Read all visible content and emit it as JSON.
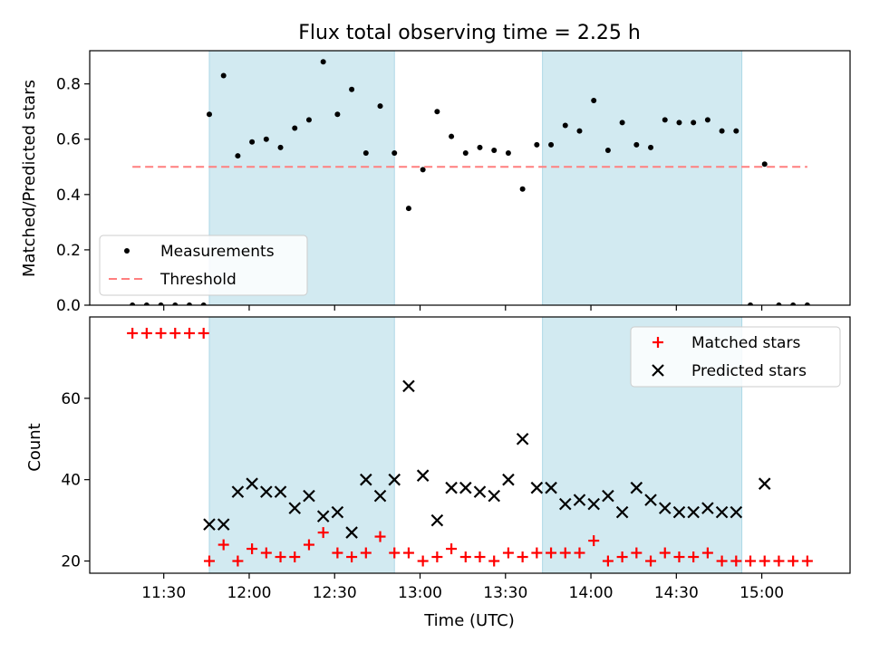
{
  "chart_data": {
    "title": "Flux total observing time = 2.25 h",
    "xlabel": "Time (UTC)",
    "x_ticks": [
      "11:30",
      "12:00",
      "12:30",
      "13:00",
      "13:30",
      "14:00",
      "14:30",
      "15:00"
    ],
    "shaded_intervals": [
      [
        "11:46",
        "12:51"
      ],
      [
        "13:43",
        "14:53"
      ]
    ],
    "shade_color": "#add8e6",
    "panels": [
      {
        "type": "scatter",
        "ylabel": "Matched/Predicted stars",
        "ylim": [
          0,
          0.92
        ],
        "y_ticks": [
          "0.0",
          "0.2",
          "0.4",
          "0.6",
          "0.8"
        ],
        "legend_position": "lower-left",
        "series": [
          {
            "name": "Measurements",
            "marker": "dot",
            "color": "#000000",
            "points": [
              [
                "11:19",
                0
              ],
              [
                "11:24",
                0
              ],
              [
                "11:29",
                0
              ],
              [
                "11:34",
                0
              ],
              [
                "11:39",
                0
              ],
              [
                "11:44",
                0
              ],
              [
                "11:46",
                0.69
              ],
              [
                "11:51",
                0.83
              ],
              [
                "11:56",
                0.54
              ],
              [
                "12:01",
                0.59
              ],
              [
                "12:06",
                0.6
              ],
              [
                "12:11",
                0.57
              ],
              [
                "12:16",
                0.64
              ],
              [
                "12:21",
                0.67
              ],
              [
                "12:26",
                0.88
              ],
              [
                "12:31",
                0.69
              ],
              [
                "12:36",
                0.78
              ],
              [
                "12:41",
                0.55
              ],
              [
                "12:46",
                0.72
              ],
              [
                "12:51",
                0.55
              ],
              [
                "12:56",
                0.35
              ],
              [
                "13:01",
                0.49
              ],
              [
                "13:06",
                0.7
              ],
              [
                "13:11",
                0.61
              ],
              [
                "13:16",
                0.55
              ],
              [
                "13:21",
                0.57
              ],
              [
                "13:26",
                0.56
              ],
              [
                "13:31",
                0.55
              ],
              [
                "13:36",
                0.42
              ],
              [
                "13:41",
                0.58
              ],
              [
                "13:46",
                0.58
              ],
              [
                "13:51",
                0.65
              ],
              [
                "13:56",
                0.63
              ],
              [
                "14:01",
                0.74
              ],
              [
                "14:06",
                0.56
              ],
              [
                "14:11",
                0.66
              ],
              [
                "14:16",
                0.58
              ],
              [
                "14:21",
                0.57
              ],
              [
                "14:26",
                0.67
              ],
              [
                "14:31",
                0.66
              ],
              [
                "14:36",
                0.66
              ],
              [
                "14:41",
                0.67
              ],
              [
                "14:46",
                0.63
              ],
              [
                "14:51",
                0.63
              ],
              [
                "14:56",
                0
              ],
              [
                "15:01",
                0.51
              ],
              [
                "15:06",
                0
              ],
              [
                "15:11",
                0
              ],
              [
                "15:16",
                0
              ]
            ]
          },
          {
            "name": "Threshold",
            "marker": "dashed-line",
            "color": "#ff7f7f",
            "y": 0.5,
            "x_range": [
              "11:19",
              "15:16"
            ]
          }
        ]
      },
      {
        "type": "scatter",
        "ylabel": "Count",
        "ylim": [
          17,
          80
        ],
        "y_ticks": [
          "20",
          "40",
          "60"
        ],
        "legend_position": "upper-right",
        "series": [
          {
            "name": "Matched stars",
            "marker": "plus",
            "color": "#ff0000",
            "points": [
              [
                "11:19",
                76
              ],
              [
                "11:24",
                76
              ],
              [
                "11:29",
                76
              ],
              [
                "11:34",
                76
              ],
              [
                "11:39",
                76
              ],
              [
                "11:44",
                76
              ],
              [
                "11:46",
                20
              ],
              [
                "11:51",
                24
              ],
              [
                "11:56",
                20
              ],
              [
                "12:01",
                23
              ],
              [
                "12:06",
                22
              ],
              [
                "12:11",
                21
              ],
              [
                "12:16",
                21
              ],
              [
                "12:21",
                24
              ],
              [
                "12:26",
                27
              ],
              [
                "12:31",
                22
              ],
              [
                "12:36",
                21
              ],
              [
                "12:41",
                22
              ],
              [
                "12:46",
                26
              ],
              [
                "12:51",
                22
              ],
              [
                "12:56",
                22
              ],
              [
                "13:01",
                20
              ],
              [
                "13:06",
                21
              ],
              [
                "13:11",
                23
              ],
              [
                "13:16",
                21
              ],
              [
                "13:21",
                21
              ],
              [
                "13:26",
                20
              ],
              [
                "13:31",
                22
              ],
              [
                "13:36",
                21
              ],
              [
                "13:41",
                22
              ],
              [
                "13:46",
                22
              ],
              [
                "13:51",
                22
              ],
              [
                "13:56",
                22
              ],
              [
                "14:01",
                25
              ],
              [
                "14:06",
                20
              ],
              [
                "14:11",
                21
              ],
              [
                "14:16",
                22
              ],
              [
                "14:21",
                20
              ],
              [
                "14:26",
                22
              ],
              [
                "14:31",
                21
              ],
              [
                "14:36",
                21
              ],
              [
                "14:41",
                22
              ],
              [
                "14:46",
                20
              ],
              [
                "14:51",
                20
              ],
              [
                "14:56",
                20
              ],
              [
                "15:01",
                20
              ],
              [
                "15:06",
                20
              ],
              [
                "15:11",
                20
              ],
              [
                "15:16",
                20
              ]
            ]
          },
          {
            "name": "Predicted stars",
            "marker": "x",
            "color": "#000000",
            "points": [
              [
                "11:46",
                29
              ],
              [
                "11:51",
                29
              ],
              [
                "11:56",
                37
              ],
              [
                "12:01",
                39
              ],
              [
                "12:06",
                37
              ],
              [
                "12:11",
                37
              ],
              [
                "12:16",
                33
              ],
              [
                "12:21",
                36
              ],
              [
                "12:26",
                31
              ],
              [
                "12:31",
                32
              ],
              [
                "12:36",
                27
              ],
              [
                "12:41",
                40
              ],
              [
                "12:46",
                36
              ],
              [
                "12:51",
                40
              ],
              [
                "12:56",
                63
              ],
              [
                "13:01",
                41
              ],
              [
                "13:06",
                30
              ],
              [
                "13:11",
                38
              ],
              [
                "13:16",
                38
              ],
              [
                "13:21",
                37
              ],
              [
                "13:26",
                36
              ],
              [
                "13:31",
                40
              ],
              [
                "13:36",
                50
              ],
              [
                "13:41",
                38
              ],
              [
                "13:46",
                38
              ],
              [
                "13:51",
                34
              ],
              [
                "13:56",
                35
              ],
              [
                "14:01",
                34
              ],
              [
                "14:06",
                36
              ],
              [
                "14:11",
                32
              ],
              [
                "14:16",
                38
              ],
              [
                "14:21",
                35
              ],
              [
                "14:26",
                33
              ],
              [
                "14:31",
                32
              ],
              [
                "14:36",
                32
              ],
              [
                "14:41",
                33
              ],
              [
                "14:46",
                32
              ],
              [
                "14:51",
                32
              ],
              [
                "15:01",
                39
              ]
            ]
          }
        ]
      }
    ]
  }
}
